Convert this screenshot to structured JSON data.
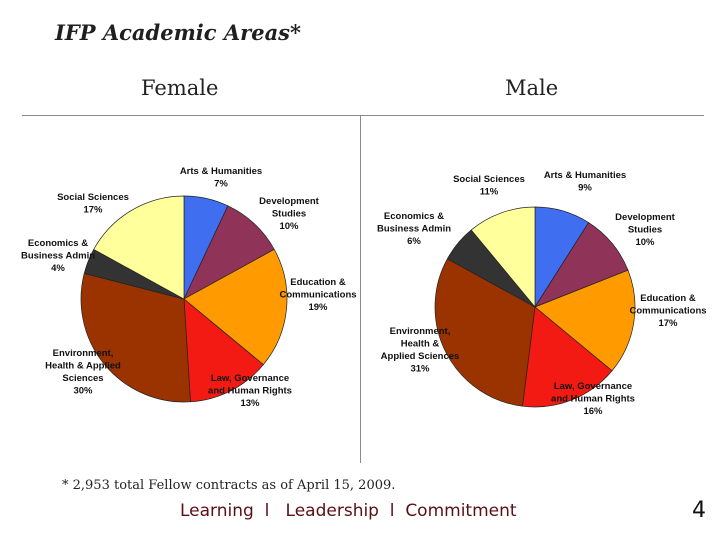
{
  "title": "IFP Academic Areas*",
  "footnote": "* 2,953 total Fellow contracts as of April 15, 2009.",
  "tagline": "Learning  l   Leadership  l  Commitment",
  "page_number": "4",
  "colors": {
    "arts": "#3f6ef0",
    "development": "#8f3359",
    "education": "#ff9a00",
    "law": "#f21a12",
    "environment": "#9b3300",
    "economics": "#333333",
    "social": "#ffff9c"
  },
  "chart_data": [
    {
      "type": "pie",
      "title": "Female",
      "start": "12 o'clock, clockwise",
      "slices": [
        {
          "key": "arts",
          "label": [
            "Arts & Humanities",
            "7%"
          ],
          "value": 7
        },
        {
          "key": "development",
          "label": [
            "Development",
            "Studies",
            "10%"
          ],
          "value": 10
        },
        {
          "key": "education",
          "label": [
            "Education &",
            "Communications",
            "19%"
          ],
          "value": 19
        },
        {
          "key": "law",
          "label": [
            "Law, Governance",
            "and Human Rights",
            "13%"
          ],
          "value": 13
        },
        {
          "key": "environment",
          "label": [
            "Environment,",
            "Health & Applied",
            "Sciences",
            "30%"
          ],
          "value": 30
        },
        {
          "key": "economics",
          "label": [
            "Economics &",
            "Business Admin",
            "4%"
          ],
          "value": 4
        },
        {
          "key": "social",
          "label": [
            "Social Sciences",
            "17%"
          ],
          "value": 17
        }
      ]
    },
    {
      "type": "pie",
      "title": "Male",
      "start": "12 o'clock, clockwise",
      "slices": [
        {
          "key": "arts",
          "label": [
            "Arts & Humanities",
            "9%"
          ],
          "value": 9
        },
        {
          "key": "development",
          "label": [
            "Development",
            "Studies",
            "10%"
          ],
          "value": 10
        },
        {
          "key": "education",
          "label": [
            "Education &",
            "Communications",
            "17%"
          ],
          "value": 17
        },
        {
          "key": "law",
          "label": [
            "Law, Governance",
            "and Human Rights",
            "16%"
          ],
          "value": 16
        },
        {
          "key": "environment",
          "label": [
            "Environment,",
            "Health &",
            "Applied Sciences",
            "31%"
          ],
          "value": 31
        },
        {
          "key": "economics",
          "label": [
            "Economics &",
            "Business Admin",
            "6%"
          ],
          "value": 6
        },
        {
          "key": "social",
          "label": [
            "Social Sciences",
            "11%"
          ],
          "value": 11
        }
      ]
    }
  ]
}
